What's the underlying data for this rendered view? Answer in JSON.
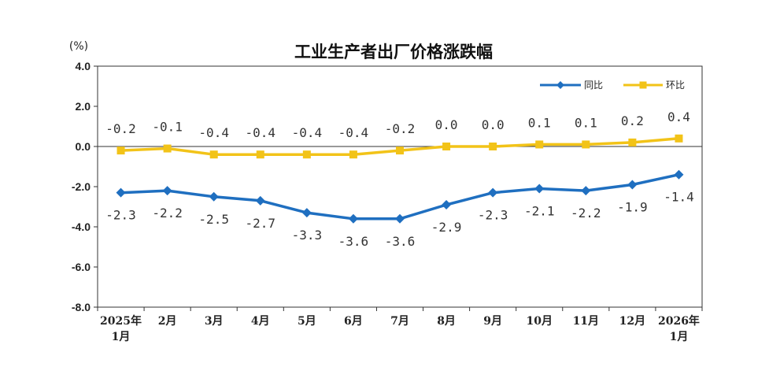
{
  "chart_data": {
    "type": "line",
    "title": "工业生产者出厂价格涨跌幅",
    "unit_label": "(%)",
    "categories": [
      [
        "2025年",
        "1月"
      ],
      [
        "2月"
      ],
      [
        "3月"
      ],
      [
        "4月"
      ],
      [
        "5月"
      ],
      [
        "6月"
      ],
      [
        "7月"
      ],
      [
        "8月"
      ],
      [
        "9月"
      ],
      [
        "10月"
      ],
      [
        "11月"
      ],
      [
        "12月"
      ],
      [
        "2026年",
        "1月"
      ]
    ],
    "ylim": [
      -8.0,
      4.0
    ],
    "yticks": [
      "4.0",
      "2.0",
      "0.0",
      "-2.0",
      "-4.0",
      "-6.0",
      "-8.0"
    ],
    "grid": false,
    "legend_position": "top-right",
    "series": [
      {
        "name": "同比",
        "color": "#1f6fc0",
        "marker": "diamond",
        "values": [
          -2.3,
          -2.2,
          -2.5,
          -2.7,
          -3.3,
          -3.6,
          -3.6,
          -2.9,
          -2.3,
          -2.1,
          -2.2,
          -1.9,
          -1.4
        ],
        "labels": [
          "-2.3",
          "-2.2",
          "-2.5",
          "-2.7",
          "-3.3",
          "-3.6",
          "-3.6",
          "-2.9",
          "-2.3",
          "-2.1",
          "-2.2",
          "-1.9",
          "-1.4"
        ]
      },
      {
        "name": "环比",
        "color": "#f2c318",
        "marker": "square",
        "values": [
          -0.2,
          -0.1,
          -0.4,
          -0.4,
          -0.4,
          -0.4,
          -0.2,
          0.0,
          0.0,
          0.1,
          0.1,
          0.2,
          0.4
        ],
        "labels": [
          "-0.2",
          "-0.1",
          "-0.4",
          "-0.4",
          "-0.4",
          "-0.4",
          "-0.2",
          "0.0",
          "0.0",
          "0.1",
          "0.1",
          "0.2",
          "0.4"
        ]
      }
    ]
  }
}
